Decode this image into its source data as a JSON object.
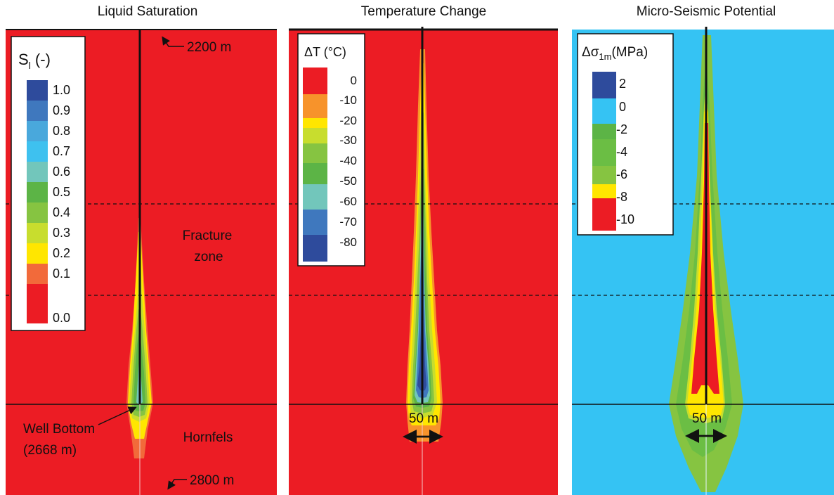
{
  "colors": {
    "red": "#EC1C24",
    "orange": "#F7932B",
    "yellow": "#FFE600",
    "yellowgreen": "#C8DD2E",
    "lightgreen": "#86C441",
    "green": "#5CB446",
    "teal": "#72C6BB",
    "sky": "#3EC1EF",
    "skyblue": "#49A8DC",
    "midblue": "#3F78BE",
    "darkblue": "#2E4B9C",
    "cyanbg": "#35C3F3"
  },
  "panels": [
    {
      "title": "Liquid Saturation",
      "legend": {
        "title_main": "S",
        "title_sub": "l",
        "title_suffix": " (-)",
        "labels": [
          "1.0",
          "0.9",
          "0.8",
          "0.7",
          "0.6",
          "0.5",
          "0.4",
          "0.3",
          "0.2",
          "0.1",
          "0.0"
        ]
      },
      "annotations": {
        "top_depth": "2200 m",
        "bottom_depth": "2800 m",
        "fracture_zone_line1": "Fracture",
        "fracture_zone_line2": "zone",
        "hornfels": "Hornfels",
        "well_bottom_line1": "Well Bottom",
        "well_bottom_line2": "(2668 m)"
      }
    },
    {
      "title": "Temperature Change",
      "legend": {
        "title": "ΔT (°C)",
        "labels": [
          "0",
          "-10",
          "-20",
          "-30",
          "-40",
          "-50",
          "-60",
          "-70",
          "-80"
        ]
      },
      "scale_label": "50 m"
    },
    {
      "title": "Micro-Seismic Potential",
      "legend": {
        "title_main": "Δσ",
        "title_sub": "1m",
        "title_suffix": "(MPa)",
        "labels": [
          "2",
          "0",
          "-2",
          "-4",
          "-6",
          "-8",
          "-10"
        ]
      },
      "scale_label": "50 m"
    }
  ]
}
